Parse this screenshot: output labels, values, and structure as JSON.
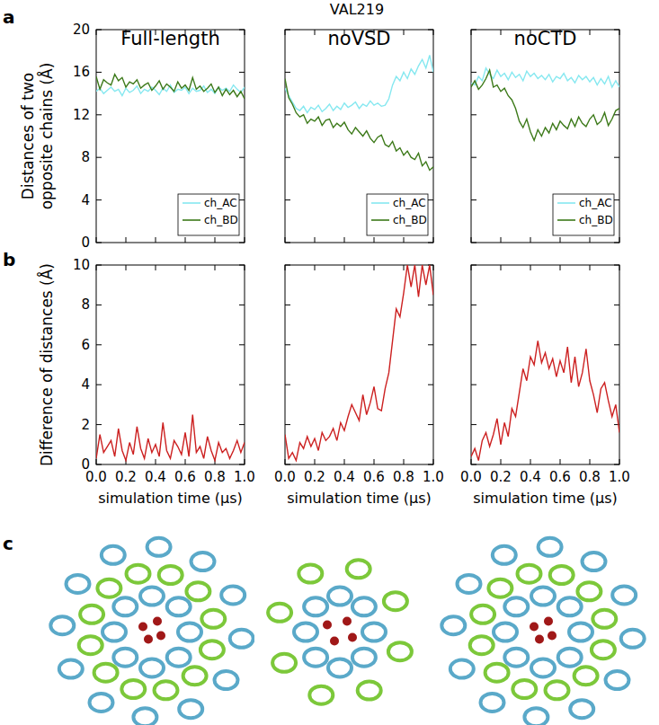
{
  "title": "VAL219",
  "panel_labels": [
    "a",
    "b",
    "c"
  ],
  "chart_data": [
    {
      "type": "line",
      "title": "Full-length",
      "y_label": [
        "Distances of two",
        "opposite chains (Å)"
      ],
      "x": [
        0,
        0.025,
        0.05,
        0.075,
        0.1,
        0.125,
        0.15,
        0.175,
        0.2,
        0.225,
        0.25,
        0.275,
        0.3,
        0.325,
        0.35,
        0.375,
        0.4,
        0.425,
        0.45,
        0.475,
        0.5,
        0.525,
        0.55,
        0.575,
        0.6,
        0.625,
        0.65,
        0.675,
        0.7,
        0.725,
        0.75,
        0.775,
        0.8,
        0.825,
        0.85,
        0.875,
        0.9,
        0.925,
        0.95,
        0.975,
        1.0
      ],
      "series": [
        {
          "name": "ch_AC",
          "color": "#86e8f0",
          "values": [
            14.2,
            14.5,
            14.0,
            14.3,
            14.6,
            14.2,
            14.4,
            13.8,
            14.5,
            14.1,
            14.3,
            14.7,
            14.0,
            14.4,
            14.2,
            14.6,
            14.3,
            13.9,
            14.5,
            14.2,
            14.8,
            14.1,
            14.4,
            14.3,
            14.6,
            14.0,
            14.5,
            14.2,
            14.3,
            14.7,
            14.1,
            14.4,
            14.0,
            14.6,
            14.3,
            14.5,
            14.2,
            14.8,
            14.4,
            14.1,
            14.6
          ]
        },
        {
          "name": "ch_BD",
          "color": "#3d7a1a",
          "values": [
            15.6,
            14.4,
            15.3,
            15.0,
            14.8,
            15.8,
            15.2,
            15.5,
            14.6,
            15.1,
            14.9,
            15.3,
            14.5,
            14.8,
            15.0,
            14.3,
            14.7,
            15.2,
            14.4,
            14.9,
            14.6,
            14.2,
            15.1,
            14.5,
            14.8,
            14.3,
            15.5,
            14.4,
            14.7,
            14.2,
            14.5,
            14.9,
            14.1,
            14.6,
            13.8,
            14.4,
            13.9,
            14.3,
            13.7,
            14.2,
            13.5
          ]
        }
      ],
      "xlim": [
        0,
        1
      ],
      "ylim": [
        0,
        20
      ],
      "xticks": [
        {
          "value": 0,
          "label": "0.0"
        },
        {
          "value": 0.2,
          "label": "0.2"
        },
        {
          "value": 0.4,
          "label": "0.4"
        },
        {
          "value": 0.6,
          "label": "0.6"
        },
        {
          "value": 0.8,
          "label": "0.8"
        },
        {
          "value": 1,
          "label": "1.0"
        }
      ],
      "yticks": [
        0,
        4,
        8,
        12,
        16,
        20
      ],
      "legend": "lower right",
      "grid": false,
      "tick_labels": "y"
    },
    {
      "type": "line",
      "title": "noVSD",
      "x": [
        0,
        0.025,
        0.05,
        0.075,
        0.1,
        0.125,
        0.15,
        0.175,
        0.2,
        0.225,
        0.25,
        0.275,
        0.3,
        0.325,
        0.35,
        0.375,
        0.4,
        0.425,
        0.45,
        0.475,
        0.5,
        0.525,
        0.55,
        0.575,
        0.6,
        0.625,
        0.65,
        0.675,
        0.7,
        0.725,
        0.75,
        0.775,
        0.8,
        0.825,
        0.85,
        0.875,
        0.9,
        0.925,
        0.95,
        0.975,
        1.0
      ],
      "series": [
        {
          "name": "ch_AC",
          "color": "#86e8f0",
          "values": [
            14.5,
            13.8,
            13.2,
            12.6,
            12.4,
            12.8,
            12.2,
            12.7,
            12.5,
            12.9,
            12.3,
            12.6,
            13.0,
            12.4,
            12.8,
            12.5,
            13.1,
            12.7,
            12.9,
            13.2,
            12.6,
            13.0,
            12.8,
            13.3,
            12.9,
            13.1,
            12.8,
            12.9,
            13.5,
            14.8,
            15.6,
            15.2,
            16.0,
            15.4,
            16.3,
            15.8,
            16.6,
            17.2,
            16.4,
            17.6,
            16.0
          ]
        },
        {
          "name": "ch_BD",
          "color": "#3d7a1a",
          "values": [
            15.4,
            13.6,
            13.0,
            12.2,
            11.8,
            12.0,
            11.2,
            11.6,
            11.4,
            11.8,
            11.0,
            11.5,
            11.6,
            10.8,
            11.2,
            10.9,
            11.3,
            10.6,
            10.2,
            10.8,
            10.4,
            10.0,
            10.5,
            9.8,
            9.4,
            9.9,
            10.1,
            9.2,
            9.0,
            9.5,
            8.6,
            8.9,
            8.2,
            8.6,
            8.0,
            7.8,
            8.4,
            7.2,
            7.6,
            6.8,
            7.1
          ]
        }
      ],
      "xlim": [
        0,
        1
      ],
      "ylim": [
        0,
        20
      ],
      "xticks": [
        {
          "value": 0,
          "label": "0.0"
        },
        {
          "value": 0.2,
          "label": "0.2"
        },
        {
          "value": 0.4,
          "label": "0.4"
        },
        {
          "value": 0.6,
          "label": "0.6"
        },
        {
          "value": 0.8,
          "label": "0.8"
        },
        {
          "value": 1,
          "label": "1.0"
        }
      ],
      "yticks": [
        0,
        4,
        8,
        12,
        16,
        20
      ],
      "legend": "lower right",
      "grid": false,
      "tick_labels": false
    },
    {
      "type": "line",
      "title": "noCTD",
      "x": [
        0,
        0.025,
        0.05,
        0.075,
        0.1,
        0.125,
        0.15,
        0.175,
        0.2,
        0.225,
        0.25,
        0.275,
        0.3,
        0.325,
        0.35,
        0.375,
        0.4,
        0.425,
        0.45,
        0.475,
        0.5,
        0.525,
        0.55,
        0.575,
        0.6,
        0.625,
        0.65,
        0.675,
        0.7,
        0.725,
        0.75,
        0.775,
        0.8,
        0.825,
        0.85,
        0.875,
        0.9,
        0.925,
        0.95,
        0.975,
        1.0
      ],
      "series": [
        {
          "name": "ch_AC",
          "color": "#86e8f0",
          "values": [
            15.0,
            14.8,
            15.6,
            15.2,
            16.4,
            15.8,
            15.4,
            16.2,
            15.6,
            15.9,
            15.3,
            16.0,
            15.5,
            15.8,
            15.2,
            16.1,
            15.6,
            15.9,
            15.4,
            15.7,
            15.3,
            15.8,
            15.1,
            15.6,
            15.4,
            15.9,
            15.2,
            15.5,
            15.0,
            15.7,
            15.3,
            15.6,
            15.1,
            15.5,
            14.8,
            15.4,
            14.9,
            15.6,
            14.6,
            15.2,
            14.6
          ]
        },
        {
          "name": "ch_BD",
          "color": "#3d7a1a",
          "values": [
            14.6,
            15.2,
            14.4,
            14.8,
            15.4,
            16.2,
            14.6,
            14.8,
            14.2,
            14.5,
            13.8,
            13.4,
            12.6,
            11.4,
            10.8,
            11.6,
            10.4,
            9.6,
            10.6,
            10.0,
            10.8,
            10.3,
            11.2,
            10.6,
            11.4,
            11.0,
            10.7,
            11.6,
            10.9,
            11.8,
            11.2,
            10.9,
            11.6,
            12.0,
            11.1,
            11.4,
            12.2,
            11.0,
            11.6,
            12.4,
            12.6
          ]
        }
      ],
      "xlim": [
        0,
        1
      ],
      "ylim": [
        0,
        20
      ],
      "xticks": [
        {
          "value": 0,
          "label": "0.0"
        },
        {
          "value": 0.2,
          "label": "0.2"
        },
        {
          "value": 0.4,
          "label": "0.4"
        },
        {
          "value": 0.6,
          "label": "0.6"
        },
        {
          "value": 0.8,
          "label": "0.8"
        },
        {
          "value": 1,
          "label": "1.0"
        }
      ],
      "yticks": [
        0,
        4,
        8,
        12,
        16,
        20
      ],
      "legend": "lower right",
      "grid": false,
      "tick_labels": false
    },
    {
      "type": "line",
      "y_label": [
        "Difference of distances (Å)"
      ],
      "x_label": "simulation time (μs)",
      "x": [
        0,
        0.025,
        0.05,
        0.075,
        0.1,
        0.125,
        0.15,
        0.175,
        0.2,
        0.225,
        0.25,
        0.275,
        0.3,
        0.325,
        0.35,
        0.375,
        0.4,
        0.425,
        0.45,
        0.475,
        0.5,
        0.525,
        0.55,
        0.575,
        0.6,
        0.625,
        0.65,
        0.675,
        0.7,
        0.725,
        0.75,
        0.775,
        0.8,
        0.825,
        0.85,
        0.875,
        0.9,
        0.925,
        0.95,
        0.975,
        1.0
      ],
      "series": [
        {
          "color": "#cc2020",
          "values": [
            0.3,
            1.5,
            0.6,
            0.9,
            1.2,
            0.4,
            1.8,
            0.7,
            0.2,
            1.1,
            0.5,
            1.9,
            0.8,
            0.3,
            1.3,
            0.6,
            1.0,
            0.4,
            2.1,
            0.7,
            0.3,
            1.2,
            0.9,
            0.5,
            1.6,
            0.4,
            2.5,
            0.6,
            0.9,
            0.3,
            1.4,
            0.7,
            0.2,
            1.1,
            0.6,
            0.8,
            0.3,
            0.7,
            1.2,
            0.6,
            1.1
          ]
        }
      ],
      "xlim": [
        0,
        1
      ],
      "ylim": [
        0,
        10
      ],
      "xticks": [
        {
          "value": 0,
          "label": "0.0"
        },
        {
          "value": 0.2,
          "label": "0.2"
        },
        {
          "value": 0.4,
          "label": "0.4"
        },
        {
          "value": 0.6,
          "label": "0.6"
        },
        {
          "value": 0.8,
          "label": "0.8"
        },
        {
          "value": 1,
          "label": "1.0"
        }
      ],
      "yticks": [
        0,
        2,
        4,
        6,
        8,
        10
      ],
      "grid": false,
      "tick_labels": true
    },
    {
      "type": "line",
      "x_label": "simulation time (μs)",
      "x": [
        0,
        0.025,
        0.05,
        0.075,
        0.1,
        0.125,
        0.15,
        0.175,
        0.2,
        0.225,
        0.25,
        0.275,
        0.3,
        0.325,
        0.35,
        0.375,
        0.4,
        0.425,
        0.45,
        0.475,
        0.5,
        0.525,
        0.55,
        0.575,
        0.6,
        0.625,
        0.65,
        0.675,
        0.7,
        0.725,
        0.75,
        0.775,
        0.8,
        0.825,
        0.85,
        0.875,
        0.9,
        0.925,
        0.95,
        0.975,
        1.0
      ],
      "series": [
        {
          "color": "#cc2020",
          "values": [
            1.5,
            0.3,
            0.6,
            0.2,
            1.1,
            0.8,
            1.4,
            0.9,
            1.3,
            0.7,
            1.6,
            1.2,
            1.4,
            1.8,
            1.2,
            2.1,
            1.7,
            2.4,
            3.0,
            2.6,
            2.2,
            3.5,
            2.5,
            3.1,
            3.9,
            2.8,
            2.7,
            3.8,
            4.6,
            6.2,
            7.8,
            7.4,
            8.6,
            10.0,
            8.9,
            10.0,
            8.4,
            10.0,
            9.0,
            10.0,
            8.5
          ]
        }
      ],
      "xlim": [
        0,
        1
      ],
      "ylim": [
        0,
        10
      ],
      "xticks": [
        {
          "value": 0,
          "label": "0.0"
        },
        {
          "value": 0.2,
          "label": "0.2"
        },
        {
          "value": 0.4,
          "label": "0.4"
        },
        {
          "value": 0.6,
          "label": "0.6"
        },
        {
          "value": 0.8,
          "label": "0.8"
        },
        {
          "value": 1,
          "label": "1.0"
        }
      ],
      "yticks": [
        0,
        2,
        4,
        6,
        8,
        10
      ],
      "grid": false,
      "tick_labels": "x"
    },
    {
      "type": "line",
      "x_label": "simulation time (μs)",
      "x": [
        0,
        0.025,
        0.05,
        0.075,
        0.1,
        0.125,
        0.15,
        0.175,
        0.2,
        0.225,
        0.25,
        0.275,
        0.3,
        0.325,
        0.35,
        0.375,
        0.4,
        0.425,
        0.45,
        0.475,
        0.5,
        0.525,
        0.55,
        0.575,
        0.6,
        0.625,
        0.65,
        0.675,
        0.7,
        0.725,
        0.75,
        0.775,
        0.8,
        0.825,
        0.85,
        0.875,
        0.9,
        0.925,
        0.95,
        0.975,
        1.0
      ],
      "series": [
        {
          "color": "#cc2020",
          "values": [
            0.4,
            0.8,
            0.2,
            1.2,
            1.6,
            0.9,
            1.5,
            2.3,
            1.0,
            2.1,
            1.4,
            2.8,
            2.4,
            3.6,
            4.8,
            4.2,
            5.4,
            5.0,
            6.2,
            5.1,
            5.6,
            4.8,
            5.3,
            4.4,
            5.2,
            4.6,
            5.9,
            4.1,
            5.4,
            3.9,
            4.6,
            5.8,
            4.2,
            3.5,
            2.6,
            3.8,
            4.1,
            3.2,
            2.4,
            3.0,
            1.6
          ]
        }
      ],
      "xlim": [
        0,
        1
      ],
      "ylim": [
        0,
        10
      ],
      "xticks": [
        {
          "value": 0,
          "label": "0.0"
        },
        {
          "value": 0.2,
          "label": "0.2"
        },
        {
          "value": 0.4,
          "label": "0.4"
        },
        {
          "value": 0.6,
          "label": "0.6"
        },
        {
          "value": 0.8,
          "label": "0.8"
        },
        {
          "value": 1,
          "label": "1.0"
        }
      ],
      "yticks": [
        0,
        2,
        4,
        6,
        8,
        10
      ],
      "grid": false,
      "tick_labels": "x"
    }
  ]
}
